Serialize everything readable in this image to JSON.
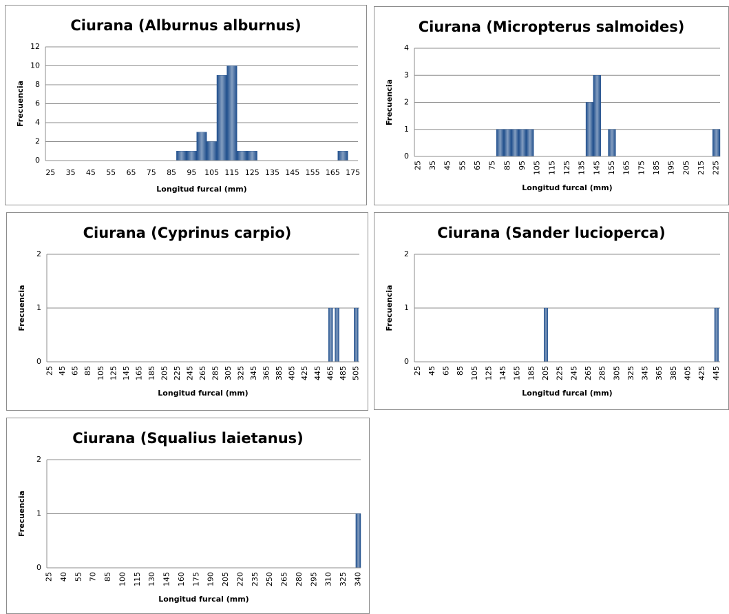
{
  "chart_data": [
    {
      "type": "bar",
      "title": "Ciurana (Alburnus alburnus)",
      "x_label": "Longitud furcal (mm)",
      "y_label": "Frecuencia",
      "categories": [
        "25",
        null,
        "35",
        null,
        "45",
        null,
        "55",
        null,
        "65",
        null,
        "75",
        null,
        "85",
        null,
        "95",
        null,
        "105",
        null,
        "115",
        null,
        "125",
        null,
        "135",
        null,
        "145",
        null,
        "155",
        null,
        "165",
        null,
        "175"
      ],
      "values": [
        0,
        0,
        0,
        0,
        0,
        0,
        0,
        0,
        0,
        0,
        0,
        0,
        0,
        1,
        1,
        3,
        2,
        9,
        10,
        1,
        1,
        0,
        0,
        0,
        0,
        0,
        0,
        0,
        0,
        1,
        0
      ],
      "color": "#1f4e8c",
      "ylim": [
        0,
        12
      ],
      "yticks": [
        0,
        2,
        4,
        6,
        8,
        10,
        12
      ],
      "grid": true
    },
    {
      "type": "bar",
      "title": "Ciurana (Micropterus salmoides)",
      "x_label": "Longitud furcal (mm)",
      "y_label": "Frecuencia",
      "categories": [
        "25",
        null,
        "35",
        null,
        "45",
        null,
        "55",
        null,
        "65",
        null,
        "75",
        null,
        "85",
        null,
        "95",
        null,
        "105",
        null,
        "115",
        null,
        "125",
        null,
        "135",
        null,
        "145",
        null,
        "155",
        null,
        "165",
        null,
        "175",
        null,
        "185",
        null,
        "195",
        null,
        "205",
        null,
        "215",
        null,
        "225"
      ],
      "values": [
        0,
        0,
        0,
        0,
        0,
        0,
        0,
        0,
        0,
        0,
        0,
        1,
        1,
        1,
        1,
        1,
        0,
        0,
        0,
        0,
        0,
        0,
        0,
        2,
        3,
        0,
        1,
        0,
        0,
        0,
        0,
        0,
        0,
        0,
        0,
        0,
        0,
        0,
        0,
        0,
        1
      ],
      "color": "#1f4e8c",
      "ylim": [
        0,
        4
      ],
      "yticks": [
        0,
        1,
        2,
        3,
        4
      ],
      "grid": true
    },
    {
      "type": "bar",
      "title": "Ciurana (Cyprinus carpio)",
      "x_label": "Longitud furcal (mm)",
      "y_label": "Frecuencia",
      "categories": [
        "25",
        null,
        "45",
        null,
        "65",
        null,
        "85",
        null,
        "105",
        null,
        "125",
        null,
        "145",
        null,
        "165",
        null,
        "185",
        null,
        "205",
        null,
        "225",
        null,
        "245",
        null,
        "265",
        null,
        "285",
        null,
        "305",
        null,
        "325",
        null,
        "345",
        null,
        "365",
        null,
        "385",
        null,
        "405",
        null,
        "425",
        null,
        "445",
        null,
        "465",
        null,
        "485",
        null,
        "505"
      ],
      "values": [
        0,
        0,
        0,
        0,
        0,
        0,
        0,
        0,
        0,
        0,
        0,
        0,
        0,
        0,
        0,
        0,
        0,
        0,
        0,
        0,
        0,
        0,
        0,
        0,
        0,
        0,
        0,
        0,
        0,
        0,
        0,
        0,
        0,
        0,
        0,
        0,
        0,
        0,
        0,
        0,
        0,
        0,
        0,
        0,
        1,
        1,
        0,
        0,
        1
      ],
      "color": "#1f4e8c",
      "ylim": [
        0,
        2
      ],
      "yticks": [
        0,
        1,
        2
      ],
      "grid": true
    },
    {
      "type": "bar",
      "title": "Ciurana (Sander lucioperca)",
      "x_label": "Longitud furcal (mm)",
      "y_label": "Frecuencia",
      "categories": [
        "25",
        null,
        "45",
        null,
        "65",
        null,
        "85",
        null,
        "105",
        null,
        "125",
        null,
        "145",
        null,
        "165",
        null,
        "185",
        null,
        "205",
        null,
        "225",
        null,
        "245",
        null,
        "265",
        null,
        "285",
        null,
        "305",
        null,
        "325",
        null,
        "345",
        null,
        "365",
        null,
        "385",
        null,
        "405",
        null,
        "425",
        null,
        "445"
      ],
      "values": [
        0,
        0,
        0,
        0,
        0,
        0,
        0,
        0,
        0,
        0,
        0,
        0,
        0,
        0,
        0,
        0,
        0,
        0,
        1,
        0,
        0,
        0,
        0,
        0,
        0,
        0,
        0,
        0,
        0,
        0,
        0,
        0,
        0,
        0,
        0,
        0,
        0,
        0,
        0,
        0,
        0,
        0,
        1
      ],
      "color": "#1f4e8c",
      "ylim": [
        0,
        2
      ],
      "yticks": [
        0,
        1,
        2
      ],
      "grid": true
    },
    {
      "type": "bar",
      "title": "Ciurana (Squalius laietanus)",
      "x_label": "Longitud furcal (mm)",
      "y_label": "Frecuencia",
      "categories": [
        "25",
        null,
        null,
        "40",
        null,
        null,
        "55",
        null,
        null,
        "70",
        null,
        null,
        "85",
        null,
        null,
        "100",
        null,
        null,
        "115",
        null,
        null,
        "130",
        null,
        null,
        "145",
        null,
        null,
        "160",
        null,
        null,
        "175",
        null,
        null,
        "190",
        null,
        null,
        "205",
        null,
        null,
        "220",
        null,
        null,
        "235",
        null,
        null,
        "250",
        null,
        null,
        "265",
        null,
        null,
        "280",
        null,
        null,
        "295",
        null,
        null,
        "310",
        null,
        null,
        "325",
        null,
        null,
        "340"
      ],
      "values": [
        0,
        0,
        0,
        0,
        0,
        0,
        0,
        0,
        0,
        0,
        0,
        0,
        0,
        0,
        0,
        0,
        0,
        0,
        0,
        0,
        0,
        0,
        0,
        0,
        0,
        0,
        0,
        0,
        0,
        0,
        0,
        0,
        0,
        0,
        0,
        0,
        0,
        0,
        0,
        0,
        0,
        0,
        0,
        0,
        0,
        0,
        0,
        0,
        0,
        0,
        0,
        0,
        0,
        0,
        0,
        0,
        0,
        0,
        0,
        0,
        0,
        0,
        0,
        1
      ],
      "color": "#1f4e8c",
      "ylim": [
        0,
        2
      ],
      "yticks": [
        0,
        1,
        2
      ],
      "grid": true
    }
  ]
}
